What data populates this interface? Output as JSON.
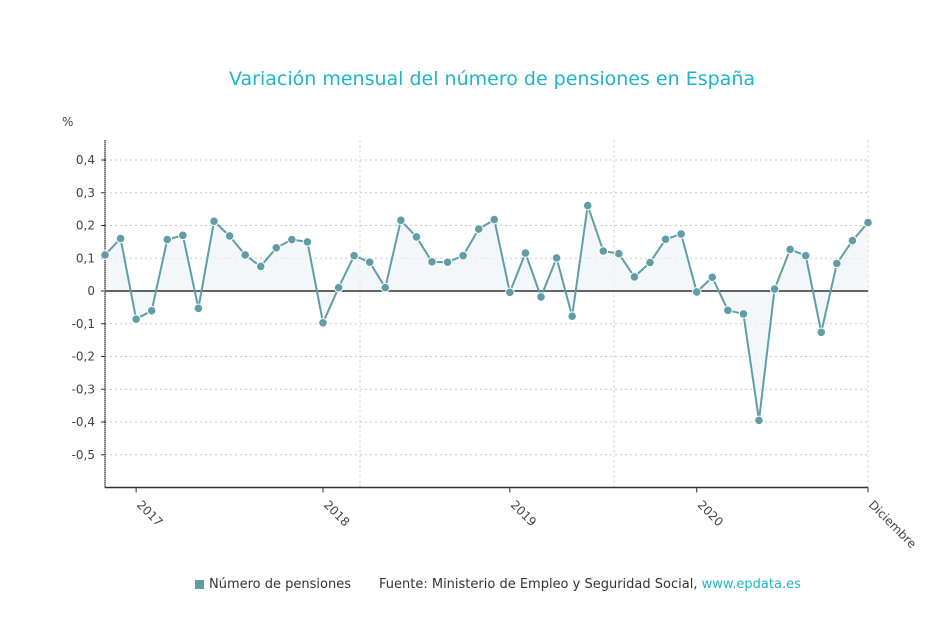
{
  "chart_data": {
    "type": "area",
    "title": "Variación mensual del número de pensiones en España",
    "ylabel": "%",
    "xlabel": "",
    "ylim": [
      -0.6,
      0.46
    ],
    "yticks": [
      0.4,
      0.3,
      0.2,
      0.1,
      0,
      -0.1,
      -0.2,
      -0.3,
      -0.4,
      -0.5
    ],
    "ytick_labels": [
      "0,4",
      "0,3",
      "0,2",
      "0,1",
      "0",
      "-0,1",
      "-0,2",
      "-0,3",
      "-0,4",
      "-0,5"
    ],
    "xtick_labels": [
      {
        "label": "2017",
        "x": "2017-01"
      },
      {
        "label": "2018",
        "x": "2018-01"
      },
      {
        "label": "2019",
        "x": "2019-01"
      },
      {
        "label": "2020",
        "x": "2020-01"
      },
      {
        "label": "Diciembre",
        "x": "2020-12"
      }
    ],
    "grid": true,
    "legend_position": "bottom",
    "color": "#5f9ea8",
    "series": [
      {
        "name": "Número de pensiones",
        "x": [
          "2016-11",
          "2016-12",
          "2017-01",
          "2017-02",
          "2017-03",
          "2017-04",
          "2017-05",
          "2017-06",
          "2017-07",
          "2017-08",
          "2017-09",
          "2017-10",
          "2017-11",
          "2017-12",
          "2018-01",
          "2018-02",
          "2018-03",
          "2018-04",
          "2018-05",
          "2018-06",
          "2018-07",
          "2018-08",
          "2018-09",
          "2018-10",
          "2018-11",
          "2018-12",
          "2019-01",
          "2019-02",
          "2019-03",
          "2019-04",
          "2019-05",
          "2019-06",
          "2019-07",
          "2019-08",
          "2019-09",
          "2019-10",
          "2019-11",
          "2019-12",
          "2020-01",
          "2020-02",
          "2020-03",
          "2020-04",
          "2020-05",
          "2020-06",
          "2020-07",
          "2020-08",
          "2020-09",
          "2020-10",
          "2020-11",
          "2020-12"
        ],
        "values": [
          0.11,
          0.16,
          -0.086,
          -0.06,
          0.157,
          0.17,
          -0.053,
          0.213,
          0.168,
          0.11,
          0.075,
          0.132,
          0.157,
          0.15,
          -0.097,
          0.01,
          0.108,
          0.088,
          0.01,
          0.216,
          0.165,
          0.089,
          0.088,
          0.108,
          0.189,
          0.218,
          -0.004,
          0.116,
          -0.018,
          0.101,
          -0.077,
          0.261,
          0.122,
          0.114,
          0.043,
          0.087,
          0.158,
          0.174,
          -0.003,
          0.042,
          -0.059,
          -0.07,
          -0.395,
          0.006,
          0.127,
          0.108,
          -0.126,
          0.084,
          0.154,
          0.209
        ]
      }
    ]
  },
  "legend": {
    "series_label": "Número de pensiones",
    "source": "Fuente: Ministerio de Empleo y Seguridad Social,",
    "link": "www.epdata.es"
  }
}
